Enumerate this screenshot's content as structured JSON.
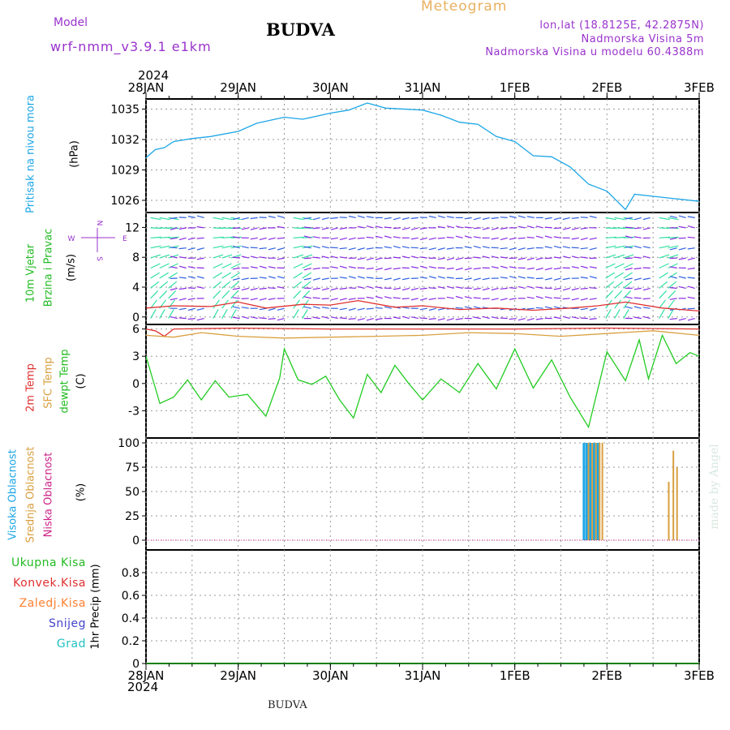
{
  "header": {
    "model_label": "Model",
    "model_name": "wrf-nmm_v3.9.1 e1km",
    "station": "BUDVA",
    "chart_title": "Meteogram",
    "lonlat": "lon,lat (18.8125E, 42.2875N)",
    "elevation": "Nadmorska Visina 5m",
    "model_elevation": "Nadmorska Visina u modelu 60.4388m",
    "footer_station": "BUDVA",
    "credit": "made by Angel"
  },
  "time_axis": {
    "year": "2024",
    "ticks": [
      "28JAN",
      "29JAN",
      "30JAN",
      "31JAN",
      "1FEB",
      "2FEB",
      "3FEB"
    ]
  },
  "colors": {
    "pressure": "#1ca6e6",
    "wind_fast": "#2ee0a0",
    "wind_slow": "#8a2be2",
    "gust": "#e03030",
    "temp2m": "#e03030",
    "sfc": "#d9a040",
    "dewpt": "#22cc22",
    "high_cloud": "#1ca6e6",
    "mid_cloud": "#d9a040",
    "low_cloud": "#cc2288"
  },
  "panels": {
    "pressure": {
      "label": "Pritisak na nivou mora",
      "unit": "(hPa)",
      "ticks": [
        "1035",
        "1032",
        "1029",
        "1026"
      ]
    },
    "wind": {
      "label1": "10m Vjetar",
      "label2": "Brzina i Pravac",
      "unit": "(m/s)",
      "ticks": [
        "12",
        "8",
        "4",
        "0"
      ],
      "compass": {
        "n": "N",
        "s": "S",
        "w": "W",
        "e": "E"
      }
    },
    "temp": {
      "label1": "2m Temp",
      "label2": "SFC Temp",
      "label3": "dewpt Temp",
      "unit": "(C)",
      "ticks": [
        "6",
        "3",
        "0",
        "-3"
      ]
    },
    "cloud": {
      "label1": "Visoka Oblacnost",
      "label2": "Srednja Oblacnost",
      "label3": "Niska Oblacnost",
      "unit": "(%)",
      "ticks": [
        "100",
        "75",
        "50",
        "25",
        "0"
      ]
    },
    "precip": {
      "labels": [
        "Ukupna Kisa",
        "Konvek.Kisa",
        "Zaledj.Kisa",
        "Snijeg",
        "Grad"
      ],
      "unit": "1hr Precip (mm)",
      "ticks": [
        "0.8",
        "0.6",
        "0.4",
        "0.2",
        "0"
      ]
    }
  },
  "chart_data": [
    {
      "type": "line",
      "title": "Pritisak na nivou mora",
      "ylabel": "(hPa)",
      "ylim": [
        1024.8,
        1036
      ],
      "x_unit": "days from 28JAN 00",
      "series": [
        {
          "name": "Pritisak na nivou mora",
          "points": [
            [
              0,
              1030.2
            ],
            [
              0.1,
              1031
            ],
            [
              0.2,
              1031.2
            ],
            [
              0.3,
              1031.8
            ],
            [
              0.5,
              1032.1
            ],
            [
              0.7,
              1032.3
            ],
            [
              1.0,
              1032.8
            ],
            [
              1.2,
              1033.6
            ],
            [
              1.5,
              1034.2
            ],
            [
              1.7,
              1034.0
            ],
            [
              2.0,
              1034.6
            ],
            [
              2.2,
              1034.9
            ],
            [
              2.4,
              1035.6
            ],
            [
              2.6,
              1035.1
            ],
            [
              3.0,
              1034.9
            ],
            [
              3.2,
              1034.4
            ],
            [
              3.4,
              1033.7
            ],
            [
              3.6,
              1033.5
            ],
            [
              3.8,
              1032.3
            ],
            [
              4.0,
              1031.8
            ],
            [
              4.2,
              1030.4
            ],
            [
              4.4,
              1030.3
            ],
            [
              4.6,
              1029.3
            ],
            [
              4.8,
              1027.6
            ],
            [
              5.0,
              1026.9
            ],
            [
              5.2,
              1025.1
            ],
            [
              5.3,
              1026.6
            ],
            [
              5.5,
              1026.4
            ],
            [
              5.7,
              1026.2
            ],
            [
              6.0,
              1025.9
            ]
          ]
        }
      ],
      "grid": true
    },
    {
      "type": "line",
      "title": "10m Vjetar / Brzina i Pravac",
      "ylabel": "(m/s)",
      "ylim": [
        -1,
        14
      ],
      "x_unit": "days from 28JAN 00",
      "series": [
        {
          "name": "Brzina",
          "points": [
            [
              0,
              1.2
            ],
            [
              0.3,
              1.5
            ],
            [
              0.7,
              1.4
            ],
            [
              1.0,
              2.0
            ],
            [
              1.3,
              1.2
            ],
            [
              1.7,
              1.7
            ],
            [
              2.0,
              1.6
            ],
            [
              2.3,
              2.2
            ],
            [
              2.7,
              1.3
            ],
            [
              3.0,
              1.5
            ],
            [
              3.4,
              1.0
            ],
            [
              3.8,
              1.2
            ],
            [
              4.2,
              0.9
            ],
            [
              4.6,
              1.2
            ],
            [
              4.9,
              1.5
            ],
            [
              5.2,
              2.0
            ],
            [
              5.6,
              1.2
            ],
            [
              6.0,
              0.8
            ]
          ]
        }
      ],
      "grid": true
    },
    {
      "type": "line",
      "title": "2m Temp / SFC Temp / dewpt Temp",
      "ylabel": "(C)",
      "ylim": [
        -6,
        6.5
      ],
      "x_unit": "days from 28JAN 00",
      "series": [
        {
          "name": "2m Temp",
          "points": [
            [
              0,
              6.0
            ],
            [
              0.1,
              5.8
            ],
            [
              0.2,
              5.2
            ],
            [
              0.3,
              6.0
            ],
            [
              1.0,
              6.1
            ],
            [
              2.0,
              6.0
            ],
            [
              3.0,
              6.0
            ],
            [
              4.0,
              6.0
            ],
            [
              5.0,
              6.1
            ],
            [
              6.0,
              6.0
            ]
          ]
        },
        {
          "name": "SFC Temp",
          "points": [
            [
              0,
              5.3
            ],
            [
              0.3,
              5.1
            ],
            [
              0.6,
              5.6
            ],
            [
              1.0,
              5.2
            ],
            [
              1.5,
              5.0
            ],
            [
              2.0,
              5.1
            ],
            [
              2.5,
              5.2
            ],
            [
              3.0,
              5.3
            ],
            [
              3.5,
              5.6
            ],
            [
              4.0,
              5.5
            ],
            [
              4.5,
              5.2
            ],
            [
              5.0,
              5.5
            ],
            [
              5.5,
              5.8
            ],
            [
              6.0,
              5.3
            ]
          ]
        },
        {
          "name": "dewpt Temp",
          "points": [
            [
              0,
              3.0
            ],
            [
              0.15,
              -2.2
            ],
            [
              0.3,
              -1.5
            ],
            [
              0.45,
              0.4
            ],
            [
              0.6,
              -1.8
            ],
            [
              0.75,
              0.3
            ],
            [
              0.9,
              -1.5
            ],
            [
              1.1,
              -1.2
            ],
            [
              1.3,
              -3.6
            ],
            [
              1.45,
              0.6
            ],
            [
              1.5,
              3.8
            ],
            [
              1.65,
              0.4
            ],
            [
              1.8,
              -0.1
            ],
            [
              1.95,
              0.8
            ],
            [
              2.1,
              -1.8
            ],
            [
              2.25,
              -3.8
            ],
            [
              2.4,
              1.0
            ],
            [
              2.55,
              -1.0
            ],
            [
              2.7,
              2.0
            ],
            [
              2.85,
              0.0
            ],
            [
              3.0,
              -1.8
            ],
            [
              3.2,
              0.5
            ],
            [
              3.4,
              -1.0
            ],
            [
              3.6,
              2.2
            ],
            [
              3.8,
              -0.6
            ],
            [
              4.0,
              3.8
            ],
            [
              4.2,
              -0.5
            ],
            [
              4.4,
              2.6
            ],
            [
              4.6,
              -1.5
            ],
            [
              4.8,
              -4.8
            ],
            [
              5.0,
              3.5
            ],
            [
              5.2,
              0.3
            ],
            [
              5.35,
              4.8
            ],
            [
              5.45,
              0.5
            ],
            [
              5.6,
              5.3
            ],
            [
              5.75,
              2.2
            ],
            [
              5.9,
              3.4
            ],
            [
              6.0,
              3.0
            ]
          ]
        }
      ],
      "grid": true
    },
    {
      "type": "bar",
      "title": "Oblacnost",
      "ylabel": "(%)",
      "ylim": [
        -10,
        105
      ],
      "x_unit": "days from 28JAN 00",
      "series": [
        {
          "name": "Visoka Oblacnost",
          "points": [
            [
              4.75,
              100
            ],
            [
              4.78,
              100
            ],
            [
              4.82,
              100
            ],
            [
              4.86,
              100
            ],
            [
              4.9,
              100
            ]
          ]
        },
        {
          "name": "Srednja Oblacnost",
          "points": [
            [
              4.8,
              100
            ],
            [
              4.84,
              100
            ],
            [
              4.88,
              100
            ],
            [
              4.92,
              100
            ],
            [
              4.95,
              100
            ],
            [
              5.67,
              60
            ],
            [
              5.72,
              92
            ],
            [
              5.76,
              75
            ]
          ]
        },
        {
          "name": "Niska Oblacnost",
          "points": []
        }
      ],
      "grid": true
    },
    {
      "type": "line",
      "title": "1hr Precip",
      "ylabel": "1hr Precip (mm)",
      "ylim": [
        0,
        1.0
      ],
      "x_unit": "days from 28JAN 00",
      "series": [
        {
          "name": "Ukupna Kisa",
          "points": [
            [
              0,
              0
            ],
            [
              6,
              0
            ]
          ]
        }
      ],
      "grid": true
    }
  ]
}
